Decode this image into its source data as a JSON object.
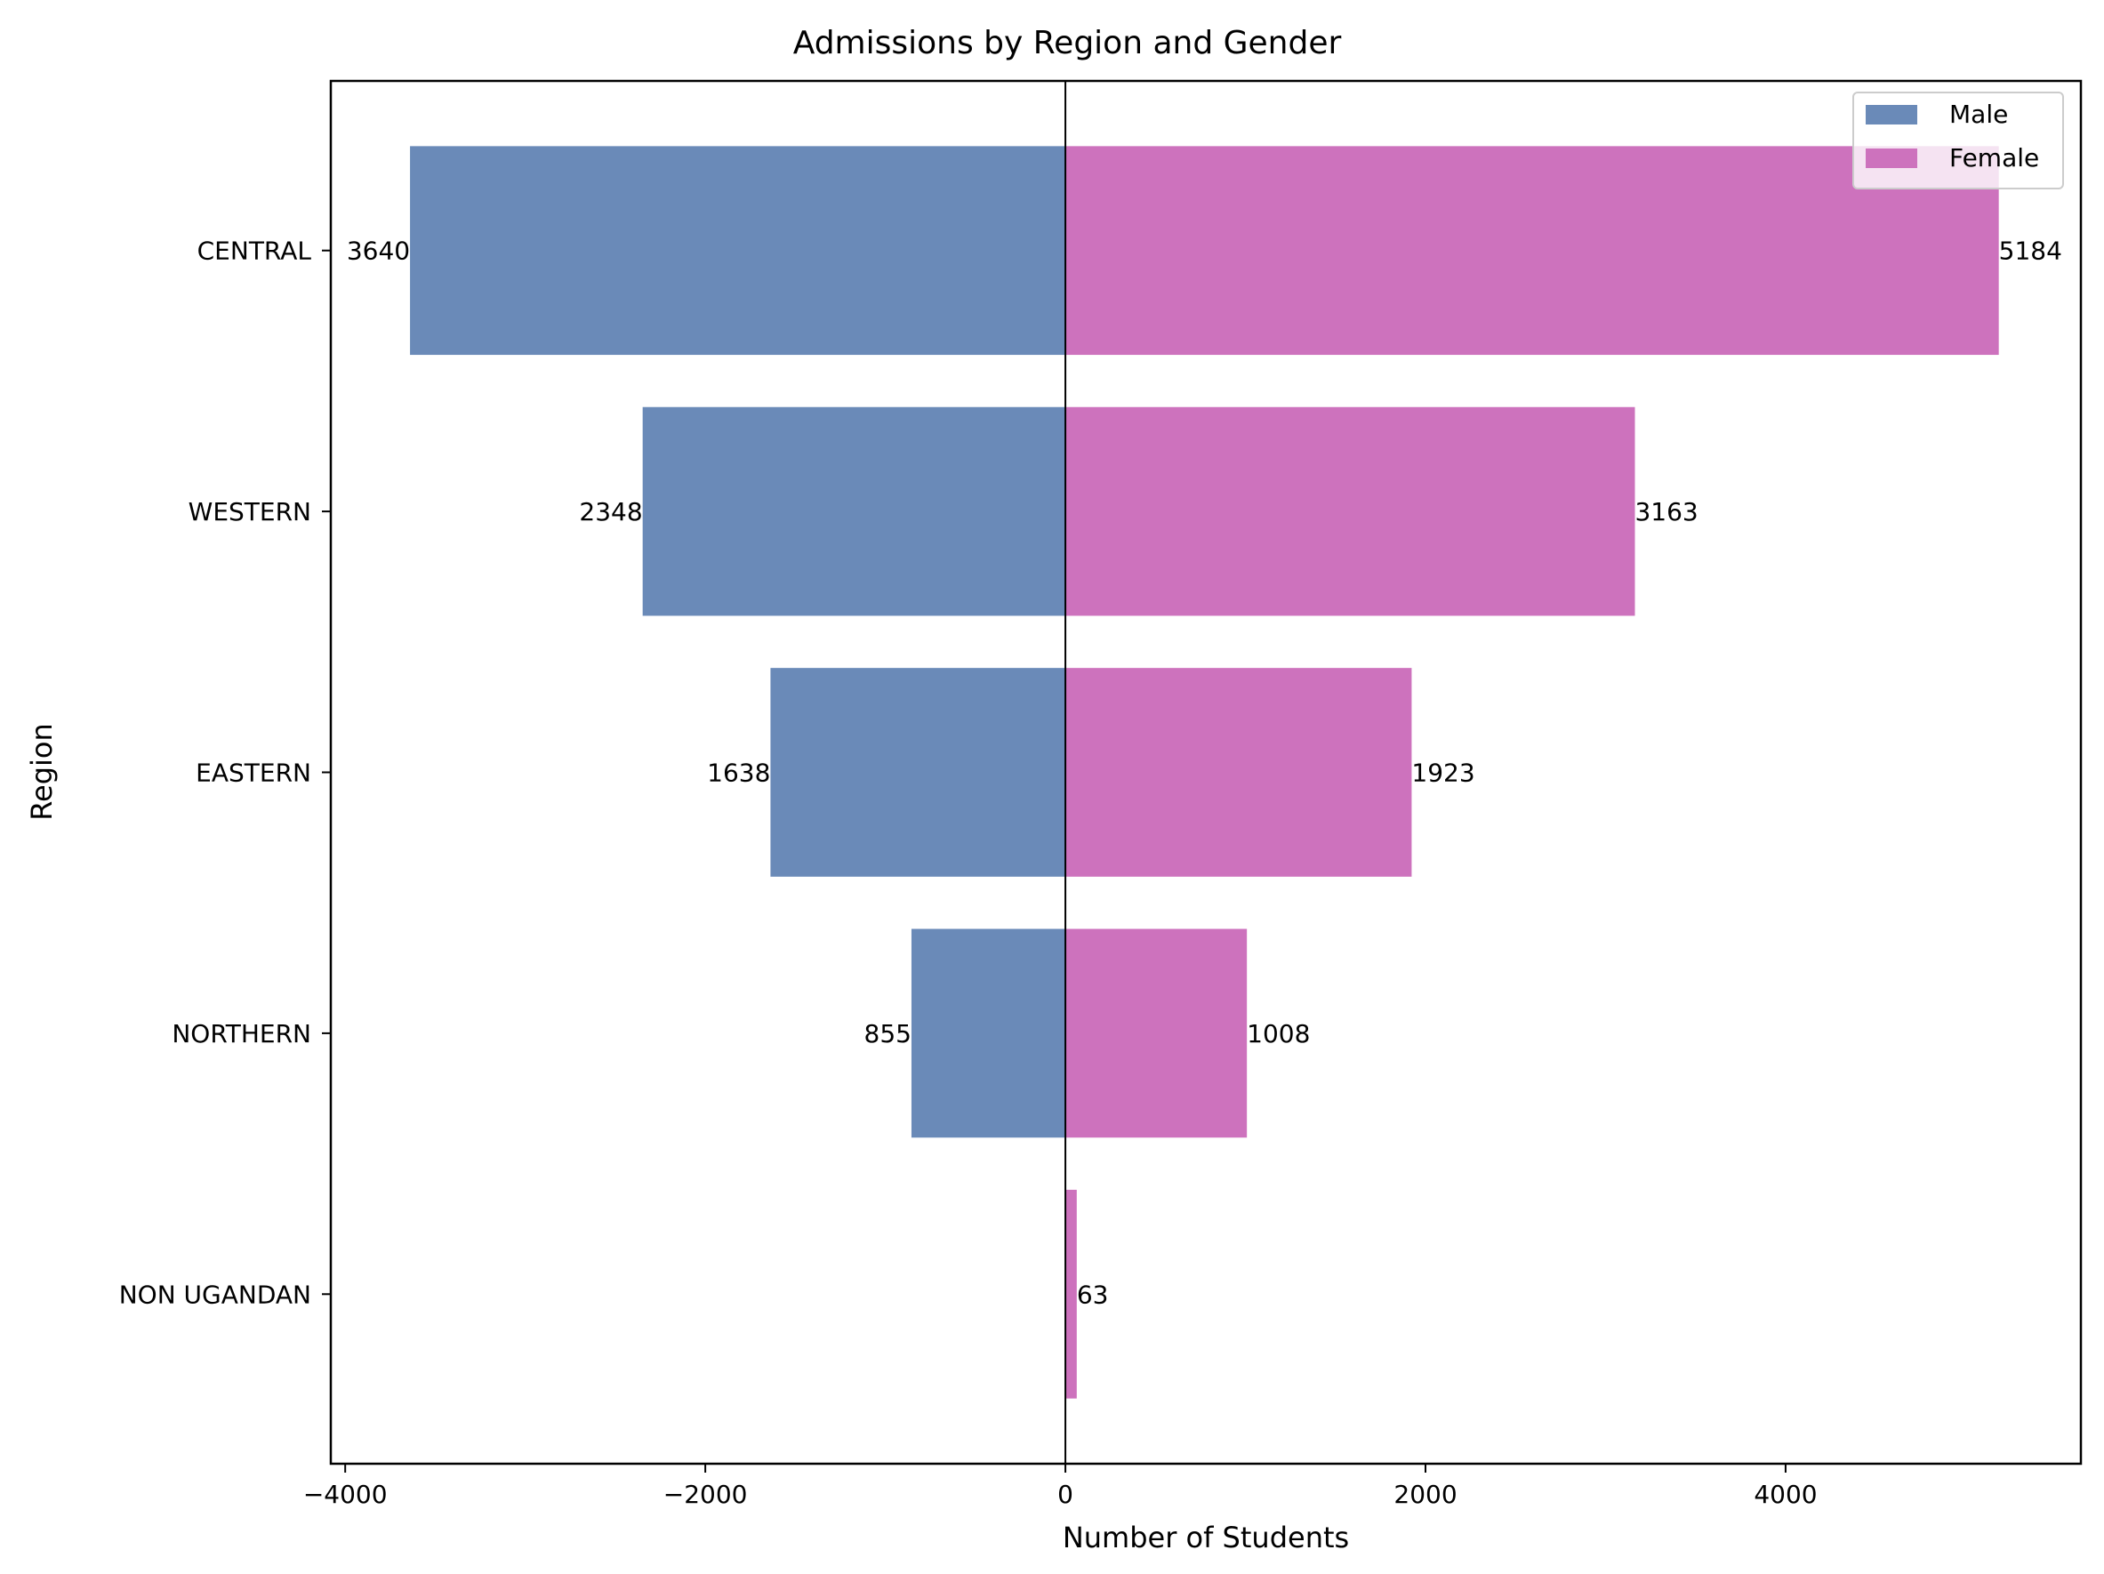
{
  "chart_data": {
    "type": "bar",
    "orientation": "horizontal",
    "title": "Admissions by Region and Gender",
    "xlabel": "Number of Students",
    "ylabel": "Region",
    "categories": [
      "CENTRAL",
      "WESTERN",
      "EASTERN",
      "NORTHERN",
      "NON UGANDAN"
    ],
    "series": [
      {
        "name": "Male",
        "color": "#6a8ab8",
        "values": [
          -3640,
          -2348,
          -1638,
          -855,
          0
        ]
      },
      {
        "name": "Female",
        "color": "#cd72bd",
        "values": [
          5184,
          3163,
          1923,
          1008,
          63
        ]
      }
    ],
    "data_labels": {
      "Male": [
        "3640",
        "2348",
        "1638",
        "855",
        ""
      ],
      "Female": [
        "5184",
        "3163",
        "1923",
        "1008",
        "63"
      ]
    },
    "xlim": [
      -4080,
      5640
    ],
    "xticks": [
      -4000,
      -2000,
      0,
      2000,
      4000
    ],
    "xtick_labels": [
      "−4000",
      "−2000",
      "0",
      "2000",
      "4000"
    ],
    "legend": {
      "placement": "top-right",
      "entries": [
        "Male",
        "Female"
      ]
    },
    "grid": false,
    "zero_line": true
  }
}
